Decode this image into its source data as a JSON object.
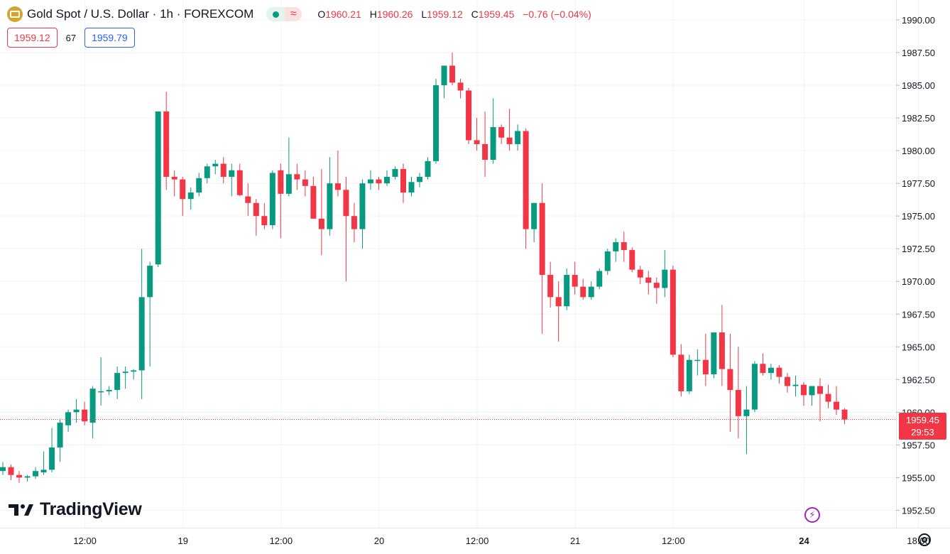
{
  "header": {
    "title": "Gold Spot / U.S. Dollar · 1h · FOREXCOM",
    "ohlc": {
      "o_label": "O",
      "o": "1960.21",
      "h_label": "H",
      "h": "1960.26",
      "l_label": "L",
      "l": "1959.12",
      "c_label": "C",
      "c": "1959.45",
      "change": "−0.76 (−0.04%)"
    },
    "sell_price": "1959.12",
    "spread": "67",
    "buy_price": "1959.79",
    "wave_glyph": "≈"
  },
  "branding": {
    "name": "TradingView"
  },
  "last_price": {
    "value": "1959.45",
    "countdown": "29:53"
  },
  "icons": {
    "symbol": "gold-coin-icon",
    "flash": "flash-icon",
    "settings": "gear-icon"
  },
  "colors": {
    "up": "#089981",
    "down": "#f23645",
    "grid": "#f0f3fa",
    "axis_text": "#131722"
  },
  "chart_data": {
    "type": "candlestick",
    "timeframe": "1h",
    "ylim": [
      1951.3,
      1991.2
    ],
    "y_ticks": [
      "1990.00",
      "1987.50",
      "1985.00",
      "1982.50",
      "1980.00",
      "1977.50",
      "1975.00",
      "1972.50",
      "1970.00",
      "1967.50",
      "1965.00",
      "1962.50",
      "1960.00",
      "1957.50",
      "1955.00",
      "1952.50"
    ],
    "x_ticks": [
      {
        "label": "12:00",
        "index": 10
      },
      {
        "label": "19",
        "index": 22
      },
      {
        "label": "12:00",
        "index": 34
      },
      {
        "label": "20",
        "index": 46
      },
      {
        "label": "12:00",
        "index": 58
      },
      {
        "label": "21",
        "index": 70
      },
      {
        "label": "12:00",
        "index": 82
      },
      {
        "label": "24",
        "index": 98
      },
      {
        "label": "18:00",
        "index": 112
      }
    ],
    "grid": true,
    "candles": [
      [
        1955.5,
        1956.2,
        1955.2,
        1955.8
      ],
      [
        1955.8,
        1956.0,
        1954.8,
        1955.2
      ],
      [
        1955.2,
        1955.5,
        1954.6,
        1955.0
      ],
      [
        1955.0,
        1955.2,
        1954.7,
        1955.1
      ],
      [
        1955.1,
        1955.8,
        1954.9,
        1955.5
      ],
      [
        1955.4,
        1957.0,
        1955.2,
        1955.6
      ],
      [
        1955.6,
        1958.8,
        1955.4,
        1957.3
      ],
      [
        1957.3,
        1959.5,
        1956.2,
        1959.2
      ],
      [
        1959.0,
        1960.2,
        1958.5,
        1960.0
      ],
      [
        1960.0,
        1961.0,
        1959.2,
        1960.2
      ],
      [
        1960.2,
        1960.8,
        1959.0,
        1959.3
      ],
      [
        1959.2,
        1962.0,
        1958.0,
        1961.8
      ],
      [
        1961.6,
        1964.2,
        1960.5,
        1961.6
      ],
      [
        1961.6,
        1962.0,
        1961.3,
        1961.7
      ],
      [
        1961.7,
        1963.5,
        1961.0,
        1963.0
      ],
      [
        1963.0,
        1963.5,
        1961.8,
        1963.1
      ],
      [
        1963.1,
        1963.3,
        1962.5,
        1963.2
      ],
      [
        1963.2,
        1972.5,
        1961.0,
        1968.8
      ],
      [
        1968.8,
        1971.5,
        1963.5,
        1971.2
      ],
      [
        1971.3,
        1983.0,
        1971.1,
        1983.0
      ],
      [
        1983.0,
        1984.5,
        1977.0,
        1978.0
      ],
      [
        1978.0,
        1978.5,
        1976.5,
        1977.8
      ],
      [
        1977.8,
        1978.0,
        1975.0,
        1976.3
      ],
      [
        1976.3,
        1977.2,
        1975.5,
        1976.8
      ],
      [
        1976.8,
        1978.3,
        1976.5,
        1977.9
      ],
      [
        1977.9,
        1979.0,
        1977.5,
        1978.8
      ],
      [
        1978.8,
        1979.3,
        1978.2,
        1979.0
      ],
      [
        1979.0,
        1979.5,
        1977.5,
        1978.0
      ],
      [
        1978.0,
        1979.0,
        1976.5,
        1978.5
      ],
      [
        1978.5,
        1979.0,
        1976.5,
        1976.6
      ],
      [
        1976.5,
        1977.5,
        1975.0,
        1976.0
      ],
      [
        1976.0,
        1976.3,
        1973.5,
        1975.0
      ],
      [
        1975.0,
        1976.0,
        1974.0,
        1974.3
      ],
      [
        1974.3,
        1978.5,
        1974.0,
        1978.3
      ],
      [
        1978.5,
        1979.0,
        1973.3,
        1976.7
      ],
      [
        1976.7,
        1981.0,
        1976.5,
        1978.2
      ],
      [
        1978.2,
        1979.0,
        1977.0,
        1977.8
      ],
      [
        1977.8,
        1978.5,
        1976.5,
        1977.3
      ],
      [
        1977.3,
        1978.0,
        1975.0,
        1974.8
      ],
      [
        1974.8,
        1978.6,
        1972.0,
        1974.0
      ],
      [
        1974.0,
        1979.5,
        1973.5,
        1977.5
      ],
      [
        1977.5,
        1980.0,
        1976.5,
        1977.0
      ],
      [
        1977.0,
        1978.0,
        1970.0,
        1975.0
      ],
      [
        1975.0,
        1976.0,
        1973.0,
        1974.0
      ],
      [
        1974.0,
        1977.8,
        1972.5,
        1977.5
      ],
      [
        1977.5,
        1978.5,
        1977.0,
        1977.8
      ],
      [
        1977.8,
        1978.0,
        1977.0,
        1977.5
      ],
      [
        1977.5,
        1978.5,
        1977.3,
        1978.0
      ],
      [
        1978.0,
        1978.8,
        1977.8,
        1978.6
      ],
      [
        1978.6,
        1979.0,
        1976.0,
        1976.8
      ],
      [
        1976.8,
        1978.0,
        1976.5,
        1977.6
      ],
      [
        1977.6,
        1978.3,
        1977.2,
        1978.0
      ],
      [
        1978.0,
        1979.5,
        1977.8,
        1979.2
      ],
      [
        1979.2,
        1985.5,
        1979.0,
        1985.0
      ],
      [
        1985.0,
        1986.5,
        1984.0,
        1986.5
      ],
      [
        1986.5,
        1987.5,
        1985.0,
        1985.2
      ],
      [
        1985.2,
        1985.5,
        1984.0,
        1984.6
      ],
      [
        1984.6,
        1984.8,
        1980.5,
        1980.8
      ],
      [
        1980.8,
        1982.5,
        1980.0,
        1980.5
      ],
      [
        1980.5,
        1983.0,
        1978.0,
        1979.3
      ],
      [
        1979.3,
        1984.0,
        1979.0,
        1981.8
      ],
      [
        1981.8,
        1982.0,
        1980.5,
        1981.0
      ],
      [
        1981.0,
        1983.2,
        1980.0,
        1980.5
      ],
      [
        1980.5,
        1982.0,
        1980.0,
        1981.5
      ],
      [
        1981.5,
        1981.7,
        1972.5,
        1974.0
      ],
      [
        1974.0,
        1976.0,
        1973.0,
        1976.0
      ],
      [
        1976.0,
        1977.5,
        1966.0,
        1970.5
      ],
      [
        1970.5,
        1971.5,
        1968.0,
        1968.8
      ],
      [
        1968.8,
        1970.0,
        1965.4,
        1968.1
      ],
      [
        1968.1,
        1971.0,
        1967.8,
        1970.5
      ],
      [
        1970.5,
        1971.5,
        1969.0,
        1969.6
      ],
      [
        1969.6,
        1970.2,
        1968.6,
        1968.8
      ],
      [
        1968.8,
        1970.0,
        1968.6,
        1969.6
      ],
      [
        1969.6,
        1971.0,
        1969.4,
        1970.8
      ],
      [
        1970.8,
        1972.5,
        1970.5,
        1972.3
      ],
      [
        1972.3,
        1973.3,
        1971.5,
        1973.0
      ],
      [
        1973.0,
        1973.8,
        1971.5,
        1972.4
      ],
      [
        1972.4,
        1972.6,
        1970.7,
        1970.9
      ],
      [
        1970.9,
        1971.2,
        1969.8,
        1970.3
      ],
      [
        1970.3,
        1970.8,
        1969.0,
        1969.9
      ],
      [
        1969.9,
        1970.3,
        1968.3,
        1969.5
      ],
      [
        1969.5,
        1972.4,
        1968.8,
        1970.9
      ],
      [
        1970.9,
        1971.2,
        1964.2,
        1964.4
      ],
      [
        1964.4,
        1965.2,
        1961.2,
        1961.6
      ],
      [
        1961.6,
        1964.4,
        1961.4,
        1964.0
      ],
      [
        1964.0,
        1964.8,
        1962.8,
        1964.0
      ],
      [
        1964.0,
        1966.0,
        1962.0,
        1962.9
      ],
      [
        1962.9,
        1966.1,
        1962.6,
        1966.1
      ],
      [
        1966.1,
        1968.2,
        1962.0,
        1963.3
      ],
      [
        1963.3,
        1966.0,
        1958.5,
        1961.7
      ],
      [
        1961.7,
        1965.0,
        1958.0,
        1959.7
      ],
      [
        1959.7,
        1962.0,
        1956.8,
        1960.2
      ],
      [
        1960.2,
        1963.9,
        1960.0,
        1963.7
      ],
      [
        1963.7,
        1964.5,
        1962.8,
        1963.0
      ],
      [
        1963.0,
        1963.7,
        1962.5,
        1963.4
      ],
      [
        1963.4,
        1963.6,
        1962.2,
        1962.7
      ],
      [
        1962.7,
        1963.0,
        1961.5,
        1962.0
      ],
      [
        1962.0,
        1962.8,
        1961.2,
        1962.1
      ],
      [
        1962.1,
        1962.3,
        1960.5,
        1961.3
      ],
      [
        1961.3,
        1962.0,
        1960.5,
        1962.0
      ],
      [
        1962.0,
        1962.6,
        1959.3,
        1961.4
      ],
      [
        1961.4,
        1962.1,
        1960.3,
        1960.8
      ],
      [
        1960.8,
        1962.0,
        1959.8,
        1960.2
      ],
      [
        1960.2,
        1960.3,
        1959.1,
        1959.45
      ]
    ]
  }
}
